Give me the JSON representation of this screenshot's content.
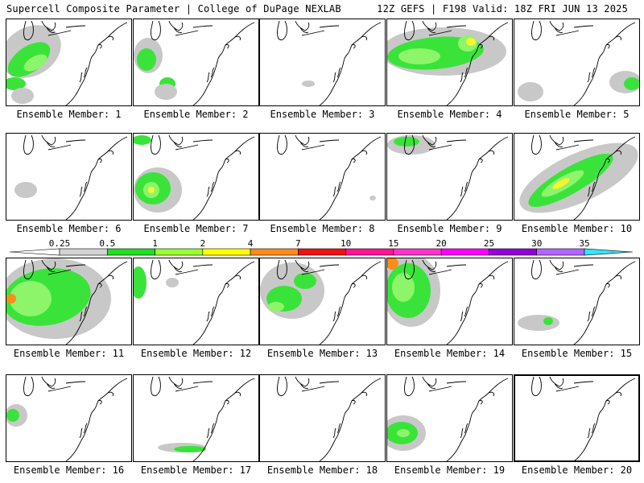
{
  "header": {
    "left_title": "Supercell Composite Parameter | College of DuPage NEXLAB",
    "right_title": "12Z GEFS | F198 Valid: 18Z FRI JUN 13 2025"
  },
  "caption_prefix": "Ensemble Member: ",
  "selected_member": 20,
  "members": [
    {
      "id": 1,
      "caption": "Ensemble Member: 1",
      "coverage": "moderate"
    },
    {
      "id": 2,
      "caption": "Ensemble Member: 2",
      "coverage": "light"
    },
    {
      "id": 3,
      "caption": "Ensemble Member: 3",
      "coverage": "trace"
    },
    {
      "id": 4,
      "caption": "Ensemble Member: 4",
      "coverage": "strong"
    },
    {
      "id": 5,
      "caption": "Ensemble Member: 5",
      "coverage": "light"
    },
    {
      "id": 6,
      "caption": "Ensemble Member: 6",
      "coverage": "trace"
    },
    {
      "id": 7,
      "caption": "Ensemble Member: 7",
      "coverage": "moderate"
    },
    {
      "id": 8,
      "caption": "Ensemble Member: 8",
      "coverage": "trace"
    },
    {
      "id": 9,
      "caption": "Ensemble Member: 9",
      "coverage": "light"
    },
    {
      "id": 10,
      "caption": "Ensemble Member: 10",
      "coverage": "strong"
    },
    {
      "id": 11,
      "caption": "Ensemble Member: 11",
      "coverage": "strong"
    },
    {
      "id": 12,
      "caption": "Ensemble Member: 12",
      "coverage": "light"
    },
    {
      "id": 13,
      "caption": "Ensemble Member: 13",
      "coverage": "moderate"
    },
    {
      "id": 14,
      "caption": "Ensemble Member: 14",
      "coverage": "strong"
    },
    {
      "id": 15,
      "caption": "Ensemble Member: 15",
      "coverage": "light"
    },
    {
      "id": 16,
      "caption": "Ensemble Member: 16",
      "coverage": "light"
    },
    {
      "id": 17,
      "caption": "Ensemble Member: 17",
      "coverage": "light"
    },
    {
      "id": 18,
      "caption": "Ensemble Member: 18",
      "coverage": "trace"
    },
    {
      "id": 19,
      "caption": "Ensemble Member: 19",
      "coverage": "moderate"
    },
    {
      "id": 20,
      "caption": "Ensemble Member: 20",
      "coverage": "trace"
    }
  ],
  "legend": {
    "labels": [
      "0.25",
      "0.5",
      "1",
      "2",
      "4",
      "7",
      "10",
      "15",
      "20",
      "25",
      "30",
      "35"
    ],
    "colors": [
      "#d3d3d3",
      "#22dd22",
      "#99ff33",
      "#ffff00",
      "#ff8c1a",
      "#ee1111",
      "#ff1493",
      "#ff33cc",
      "#ff00ff",
      "#9400d3",
      "#b266ff",
      "#33e6ff"
    ],
    "left_arrow_color": "#ffffff"
  },
  "colors": {
    "gray": "#c8c8c8",
    "green": "#3ae33a",
    "lightgreen": "#8cf56a",
    "yellow": "#f5f532",
    "orange": "#ff8c1a",
    "coast": "#000000"
  }
}
